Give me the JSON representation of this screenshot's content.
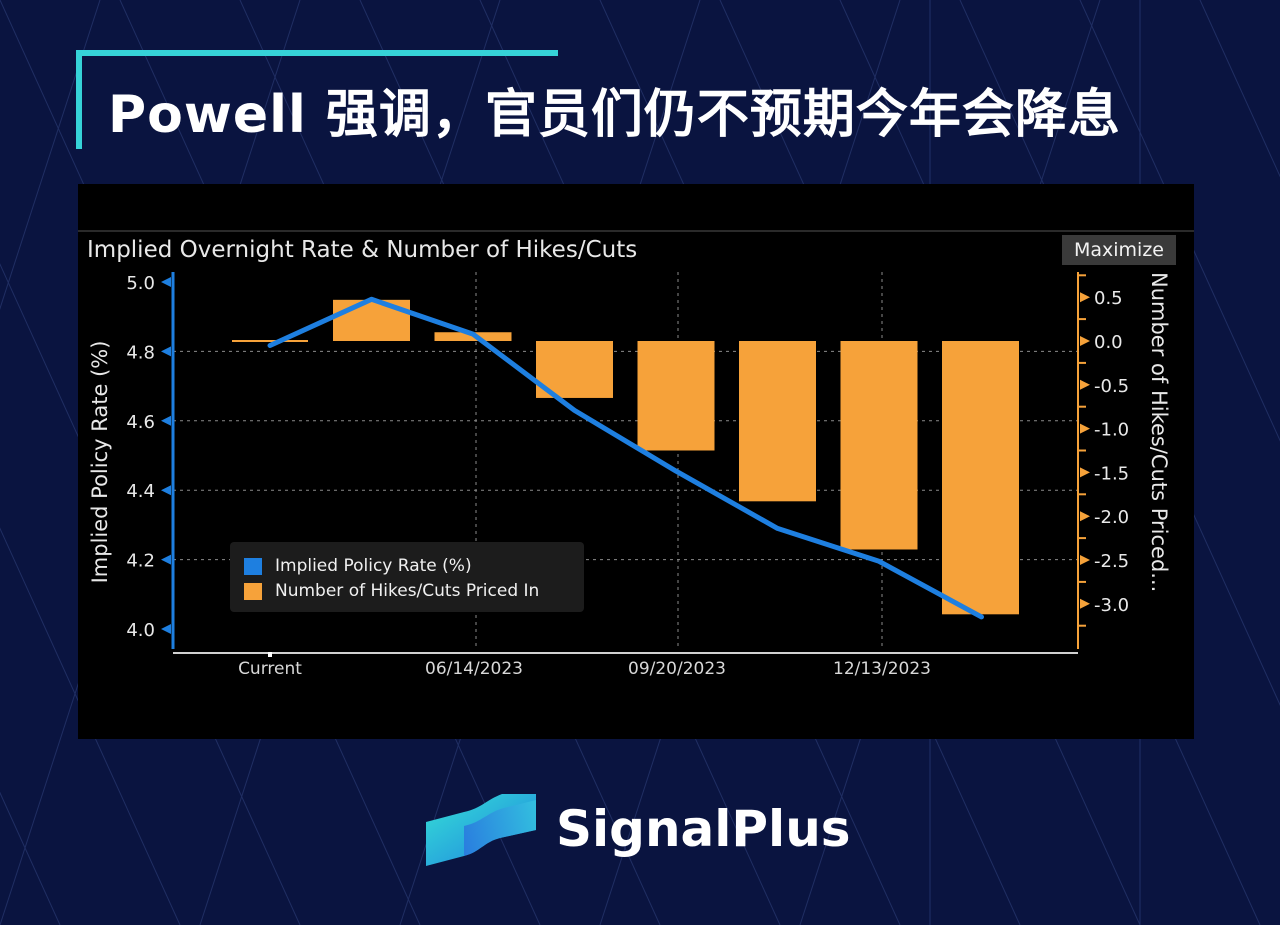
{
  "header": {
    "title": "Powell 强调，官员们仍不预期今年会降息"
  },
  "panel": {
    "title": "Implied Overnight Rate & Number of Hikes/Cuts",
    "maximize_label": "Maximize"
  },
  "brand": {
    "name": "SignalPlus"
  },
  "colors": {
    "background": "#0a1440",
    "accent": "#36d3d8",
    "line": "#1e7fe0",
    "bars": "#f6a23a"
  },
  "chart_data": {
    "type": "bar",
    "title": "Implied Overnight Rate & Number of Hikes/Cuts",
    "categories": [
      "Current",
      "",
      "06/14/2023",
      "",
      "09/20/2023",
      "",
      "12/13/2023",
      ""
    ],
    "x_tick_labels": [
      "Current",
      "06/14/2023",
      "09/20/2023",
      "12/13/2023"
    ],
    "series": [
      {
        "name": "Implied Policy Rate (%)",
        "type": "line",
        "axis": "left",
        "values": [
          4.817,
          4.95,
          4.85,
          4.63,
          4.455,
          4.29,
          4.195,
          4.035
        ]
      },
      {
        "name": "Number of Hikes/Cuts Priced In",
        "type": "bar",
        "axis": "right",
        "values": [
          0.0,
          0.47,
          0.1,
          -0.65,
          -1.25,
          -1.83,
          -2.38,
          -3.12
        ]
      }
    ],
    "ylabel": "Implied Policy Rate (%)",
    "y2label": "Number of Hikes/Cuts Priced...",
    "ylim": [
      4.0,
      5.0
    ],
    "y2lim": [
      -3.35,
      0.75
    ],
    "yticks": [
      "5.0",
      "4.8",
      "4.6",
      "4.4",
      "4.2",
      "4.0"
    ],
    "y2ticks": [
      "0.5",
      "0.0",
      "-0.5",
      "-1.0",
      "-1.5",
      "-2.0",
      "-2.5",
      "-3.0"
    ],
    "legend": {
      "placement": "lower-left",
      "entries": [
        "Implied Policy Rate (%)",
        "Number of Hikes/Cuts Priced In"
      ]
    },
    "grid": true
  }
}
